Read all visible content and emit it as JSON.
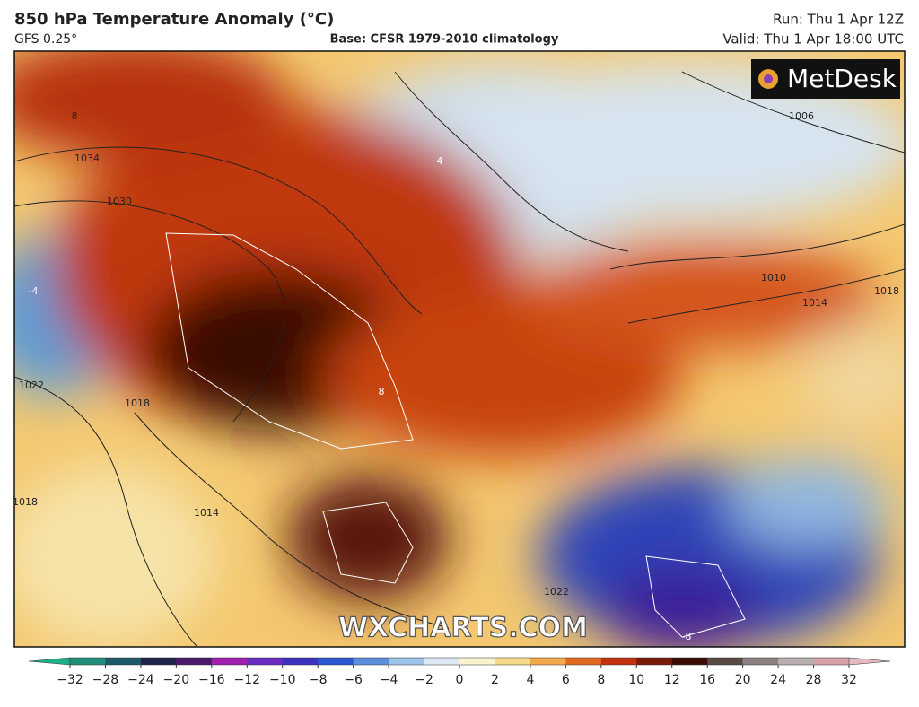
{
  "header": {
    "title": "850 hPa Temperature Anomaly (°C)",
    "model": "GFS 0.25°",
    "base": "Base: CFSR 1979-2010 climatology",
    "run": "Run: Thu 1 Apr 12Z",
    "valid": "Valid: Thu 1 Apr 18:00 UTC"
  },
  "map": {
    "logo": "MetDesk",
    "watermark": "WXCHARTS.COM",
    "contour_labels": [
      8,
      1034,
      1030,
      1022,
      1018,
      1014,
      1010,
      1006,
      1014,
      1018,
      -4,
      -8,
      4,
      8,
      1018,
      1022
    ]
  },
  "colorbar": {
    "ticks": [
      {
        "value": -32,
        "label": "−32"
      },
      {
        "value": -28,
        "label": "−28"
      },
      {
        "value": -24,
        "label": "−24"
      },
      {
        "value": -20,
        "label": "−20"
      },
      {
        "value": -16,
        "label": "−16"
      },
      {
        "value": -12,
        "label": "−12"
      },
      {
        "value": -10,
        "label": "−10"
      },
      {
        "value": -8,
        "label": "−8"
      },
      {
        "value": -6,
        "label": "−6"
      },
      {
        "value": -4,
        "label": "−4"
      },
      {
        "value": -2,
        "label": "−2"
      },
      0,
      2,
      4,
      6,
      8,
      10,
      12,
      16,
      20,
      24,
      28,
      32
    ]
  }
}
